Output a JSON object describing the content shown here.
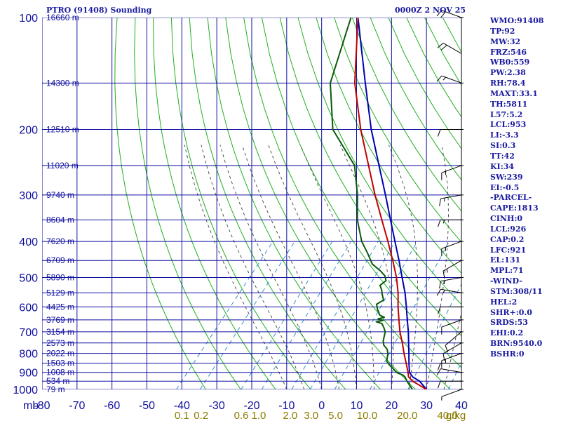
{
  "header": {
    "station": "PTRO (91408) Sounding",
    "time": "0000Z  2 NOV 25"
  },
  "colors": {
    "grid": "#1010a0",
    "temp": "#c00000",
    "dewpoint": "#0a5a0a",
    "parcel": "#0000b0",
    "dry_adiabat": "#20b020",
    "moist_adiabat": "#404040",
    "mixing_ratio": "#3b8fd0",
    "wind": "#000000",
    "text": "#1a1aa0",
    "mixing_label": "#8b7b00"
  },
  "chart_data": {
    "type": "line",
    "title": "PTRO (91408) Sounding",
    "xlabel": "mb",
    "xlim": [
      -80,
      40
    ],
    "ylim": [
      1000,
      100
    ],
    "pressure_ticks": [
      {
        "p": 100,
        "label": "100",
        "height": "16660 m"
      },
      {
        "p": 150,
        "label": "",
        "height": "14300 m"
      },
      {
        "p": 200,
        "label": "200",
        "height": "12510 m"
      },
      {
        "p": 250,
        "label": "",
        "height": "11020 m"
      },
      {
        "p": 300,
        "label": "300",
        "height": "9740 m"
      },
      {
        "p": 350,
        "label": "",
        "height": "8604 m"
      },
      {
        "p": 400,
        "label": "400",
        "height": "7620 m"
      },
      {
        "p": 450,
        "label": "",
        "height": "6709 m"
      },
      {
        "p": 500,
        "label": "500",
        "height": "5890 m"
      },
      {
        "p": 550,
        "label": "",
        "height": "5129 m"
      },
      {
        "p": 600,
        "label": "600",
        "height": "4425 m"
      },
      {
        "p": 650,
        "label": "",
        "height": "3769 m"
      },
      {
        "p": 700,
        "label": "700",
        "height": "3154 m"
      },
      {
        "p": 750,
        "label": "",
        "height": "2573 m"
      },
      {
        "p": 800,
        "label": "800",
        "height": "2022 m"
      },
      {
        "p": 850,
        "label": "",
        "height": "1503 m"
      },
      {
        "p": 900,
        "label": "900",
        "height": "1008 m"
      },
      {
        "p": 950,
        "label": "",
        "height": "534 m"
      },
      {
        "p": 1000,
        "label": "1000",
        "height": "79 m"
      }
    ],
    "temp_ticks": [
      -80,
      -70,
      -60,
      -50,
      -40,
      -30,
      -20,
      -10,
      0,
      10,
      20,
      30,
      40
    ],
    "axis_unit_label": "mb",
    "mixing_ratio_labels": [
      {
        "value": "0.1",
        "t": -40
      },
      {
        "value": "0.2",
        "t": -34.5
      },
      {
        "value": "0.6",
        "t": -23
      },
      {
        "value": "1.0",
        "t": -18
      },
      {
        "value": "2.0",
        "t": -9
      },
      {
        "value": "3.0",
        "t": -3
      },
      {
        "value": "5.0",
        "t": 4
      },
      {
        "value": "10.0",
        "t": 13
      },
      {
        "value": "20.0",
        "t": 24.5
      },
      {
        "value": "40.0",
        "t": 36
      }
    ],
    "mixing_unit": "g/kg",
    "temperature": [
      [
        1000,
        30
      ],
      [
        950,
        24
      ],
      [
        925,
        21.8
      ],
      [
        900,
        20.6
      ],
      [
        850,
        17.8
      ],
      [
        800,
        14.8
      ],
      [
        750,
        11.8
      ],
      [
        700,
        8.4
      ],
      [
        650,
        5.2
      ],
      [
        600,
        1.8
      ],
      [
        550,
        -1.6
      ],
      [
        500,
        -5.8
      ],
      [
        450,
        -11
      ],
      [
        400,
        -17
      ],
      [
        350,
        -24
      ],
      [
        300,
        -32
      ],
      [
        250,
        -41
      ],
      [
        200,
        -52
      ],
      [
        150,
        -65
      ],
      [
        100,
        -80
      ]
    ],
    "dewpoint": [
      [
        1000,
        26
      ],
      [
        975,
        24.2
      ],
      [
        950,
        22.4
      ],
      [
        925,
        20.8
      ],
      [
        915,
        19.8
      ],
      [
        905,
        18
      ],
      [
        895,
        16.8
      ],
      [
        880,
        15.5
      ],
      [
        860,
        13.5
      ],
      [
        840,
        11.8
      ],
      [
        820,
        11.0
      ],
      [
        800,
        10.2
      ],
      [
        780,
        9.0
      ],
      [
        760,
        7.0
      ],
      [
        740,
        5.8
      ],
      [
        720,
        5.0
      ],
      [
        700,
        4.2
      ],
      [
        680,
        2.6
      ],
      [
        665,
        1.2
      ],
      [
        658,
        -0.8
      ],
      [
        652,
        0.8
      ],
      [
        646,
        -1.0
      ],
      [
        640,
        0.4
      ],
      [
        630,
        -1.6
      ],
      [
        620,
        -2.4
      ],
      [
        610,
        -3.4
      ],
      [
        600,
        -4.2
      ],
      [
        590,
        -5.0
      ],
      [
        575,
        -4.0
      ],
      [
        555,
        -5.8
      ],
      [
        540,
        -7.0
      ],
      [
        525,
        -8.6
      ],
      [
        510,
        -8.0
      ],
      [
        495,
        -9.5
      ],
      [
        480,
        -12
      ],
      [
        460,
        -16
      ],
      [
        430,
        -20
      ],
      [
        400,
        -24.5
      ],
      [
        350,
        -31
      ],
      [
        300,
        -37
      ],
      [
        250,
        -45
      ],
      [
        200,
        -60
      ],
      [
        150,
        -72
      ],
      [
        100,
        -82
      ]
    ],
    "parcel": [
      [
        1000,
        30
      ],
      [
        950,
        26
      ],
      [
        925,
        23
      ],
      [
        900,
        21
      ],
      [
        850,
        18.6
      ],
      [
        800,
        16.2
      ],
      [
        750,
        13.6
      ],
      [
        700,
        10.8
      ],
      [
        650,
        7.6
      ],
      [
        600,
        4.2
      ],
      [
        550,
        0.4
      ],
      [
        500,
        -4.2
      ],
      [
        450,
        -9.2
      ],
      [
        400,
        -15
      ],
      [
        350,
        -21.5
      ],
      [
        300,
        -29
      ],
      [
        250,
        -38
      ],
      [
        200,
        -49
      ],
      [
        150,
        -62
      ],
      [
        100,
        -80
      ]
    ],
    "wind_barbs": [
      {
        "p": 1000,
        "dir": 250,
        "spd": 5
      },
      {
        "p": 950,
        "dir": 270,
        "spd": 10
      },
      {
        "p": 900,
        "dir": 280,
        "spd": 10
      },
      {
        "p": 850,
        "dir": 270,
        "spd": 10
      },
      {
        "p": 800,
        "dir": 250,
        "spd": 15
      },
      {
        "p": 750,
        "dir": 240,
        "spd": 10
      },
      {
        "p": 700,
        "dir": 230,
        "spd": 10
      },
      {
        "p": 650,
        "dir": 250,
        "spd": 10
      },
      {
        "p": 600,
        "dir": 270,
        "spd": 10
      },
      {
        "p": 550,
        "dir": 280,
        "spd": 15
      },
      {
        "p": 500,
        "dir": 260,
        "spd": 15
      },
      {
        "p": 450,
        "dir": 240,
        "spd": 15
      },
      {
        "p": 400,
        "dir": 250,
        "spd": 15
      },
      {
        "p": 350,
        "dir": 270,
        "spd": 15
      },
      {
        "p": 300,
        "dir": 260,
        "spd": 15
      },
      {
        "p": 250,
        "dir": 250,
        "spd": 15
      },
      {
        "p": 200,
        "dir": 270,
        "spd": 10
      },
      {
        "p": 150,
        "dir": 290,
        "spd": 15
      },
      {
        "p": 125,
        "dir": 300,
        "spd": 20
      },
      {
        "p": 100,
        "dir": 290,
        "spd": 20
      }
    ]
  },
  "stats": [
    "WMO:91408",
    "TP:92",
    "MW:32",
    "FRZ:546",
    "WB0:559",
    "PW:2.38",
    "RH:78.4",
    "MAXT:33.1",
    "TH:5811",
    "L57:5.2",
    "LCL:953",
    "LI:-3.3",
    "SI:0.3",
    "TT:42",
    "KI:34",
    "SW:239",
    "EI:-0.5",
    "-PARCEL-",
    "CAPE:1813",
    "CINH:0",
    "LCL:926",
    "CAP:0.2",
    "LFC:921",
    "EL:131",
    "MPL:71",
    "-WIND-",
    "STM:308/11",
    "HEL:2",
    "SHR+:0.0",
    "SRDS:53",
    "EHI:0.2",
    "BRN:9540.0",
    "BSHR:0"
  ]
}
